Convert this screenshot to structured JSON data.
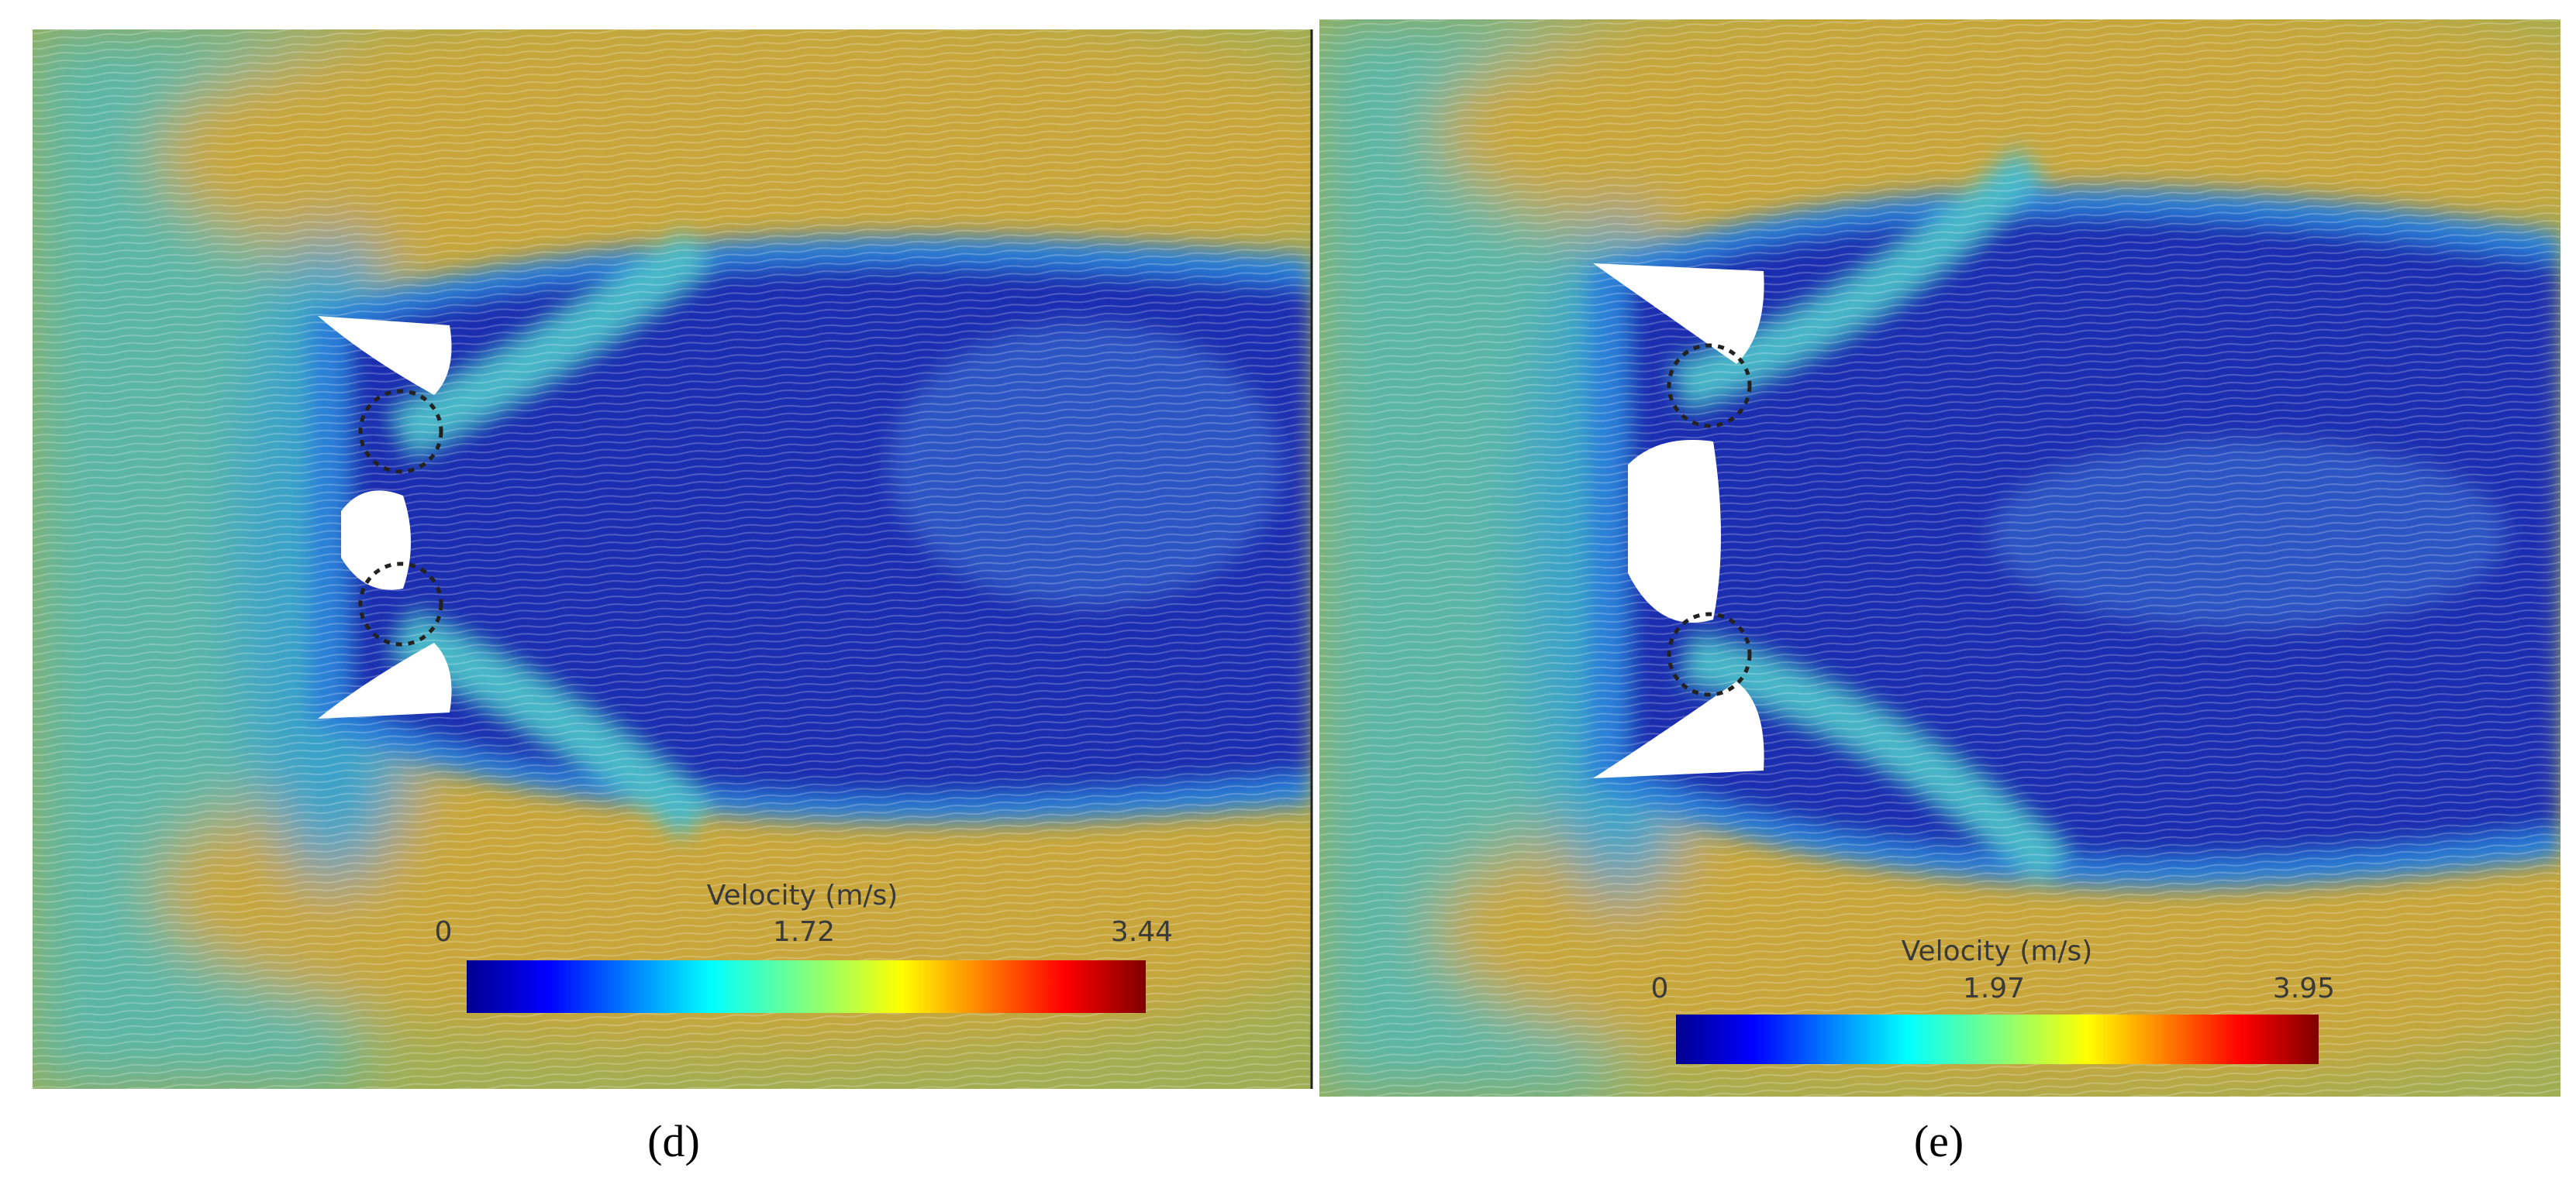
{
  "panels": [
    {
      "colorbar": {
        "title": "Velocity (m/s)",
        "ticks": [
          "0",
          "1.72",
          "3.44"
        ]
      },
      "caption": "(d)"
    },
    {
      "colorbar": {
        "title": "Velocity (m/s)",
        "ticks": [
          "0",
          "1.97",
          "3.95"
        ]
      },
      "caption": "(e)"
    }
  ]
}
